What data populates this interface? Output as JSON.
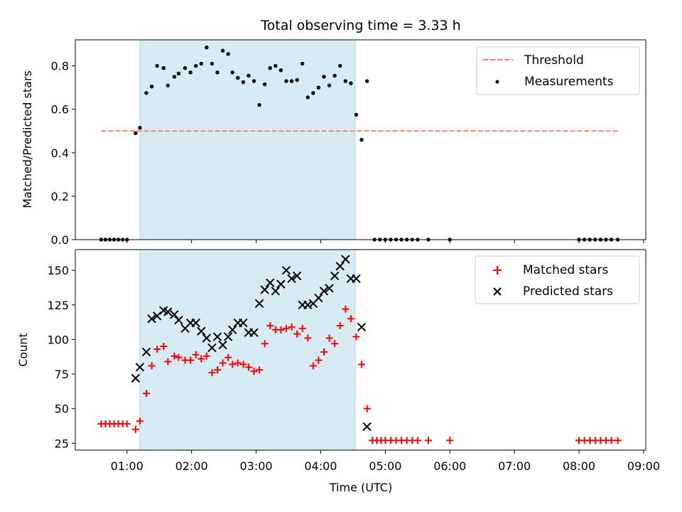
{
  "chart_data": [
    {
      "type": "scatter",
      "title": "Total observing time = 3.33 h",
      "xlabel": "",
      "ylabel": "Matched/Predicted stars",
      "xlim": [
        "00:12",
        "09:02"
      ],
      "ylim": [
        0,
        0.92
      ],
      "yticks": [
        "0.0",
        "0.2",
        "0.4",
        "0.6",
        "0.8"
      ],
      "shaded_interval": [
        "01:12",
        "04:32"
      ],
      "legend": {
        "placement": "top-right",
        "entries": [
          "Threshold",
          "Measurements"
        ]
      },
      "threshold": {
        "name": "Threshold",
        "y": 0.5,
        "x_range": [
          "00:36",
          "08:36"
        ],
        "color": "#ff7f7f",
        "style": "dashed"
      },
      "series": [
        {
          "name": "Measurements",
          "color": "#000000",
          "points": [
            [
              "00:36",
              0
            ],
            [
              "00:40",
              0
            ],
            [
              "00:44",
              0
            ],
            [
              "00:48",
              0
            ],
            [
              "00:52",
              0
            ],
            [
              "00:56",
              0
            ],
            [
              "01:00",
              0
            ],
            [
              "01:08",
              0.49
            ],
            [
              "01:12",
              0.515
            ],
            [
              "01:18",
              0.675
            ],
            [
              "01:23",
              0.705
            ],
            [
              "01:28",
              0.8
            ],
            [
              "01:34",
              0.79
            ],
            [
              "01:38",
              0.71
            ],
            [
              "01:44",
              0.75
            ],
            [
              "01:48",
              0.765
            ],
            [
              "01:54",
              0.79
            ],
            [
              "01:59",
              0.77
            ],
            [
              "02:04",
              0.8
            ],
            [
              "02:09",
              0.81
            ],
            [
              "02:14",
              0.885
            ],
            [
              "02:19",
              0.81
            ],
            [
              "02:24",
              0.77
            ],
            [
              "02:29",
              0.87
            ],
            [
              "02:34",
              0.855
            ],
            [
              "02:38",
              0.77
            ],
            [
              "02:43",
              0.745
            ],
            [
              "02:48",
              0.725
            ],
            [
              "02:53",
              0.755
            ],
            [
              "02:58",
              0.73
            ],
            [
              "03:03",
              0.62
            ],
            [
              "03:08",
              0.715
            ],
            [
              "03:13",
              0.79
            ],
            [
              "03:18",
              0.8
            ],
            [
              "03:23",
              0.78
            ],
            [
              "03:28",
              0.73
            ],
            [
              "03:33",
              0.73
            ],
            [
              "03:38",
              0.735
            ],
            [
              "03:43",
              0.81
            ],
            [
              "03:48",
              0.655
            ],
            [
              "03:53",
              0.675
            ],
            [
              "03:58",
              0.7
            ],
            [
              "04:03",
              0.75
            ],
            [
              "04:08",
              0.71
            ],
            [
              "04:13",
              0.755
            ],
            [
              "04:18",
              0.8
            ],
            [
              "04:23",
              0.73
            ],
            [
              "04:28",
              0.72
            ],
            [
              "04:33",
              0.575
            ],
            [
              "04:38",
              0.46
            ],
            [
              "04:43",
              0.73
            ],
            [
              "04:50",
              0
            ],
            [
              "04:55",
              0
            ],
            [
              "05:00",
              0
            ],
            [
              "05:05",
              0
            ],
            [
              "05:10",
              0
            ],
            [
              "05:15",
              0
            ],
            [
              "05:20",
              0
            ],
            [
              "05:25",
              0
            ],
            [
              "05:30",
              0
            ],
            [
              "05:40",
              0
            ],
            [
              "06:00",
              0
            ],
            [
              "08:00",
              0
            ],
            [
              "08:05",
              0
            ],
            [
              "08:10",
              0
            ],
            [
              "08:15",
              0
            ],
            [
              "08:20",
              0
            ],
            [
              "08:25",
              0
            ],
            [
              "08:30",
              0
            ],
            [
              "08:36",
              0
            ]
          ]
        }
      ]
    },
    {
      "type": "scatter",
      "title": "",
      "xlabel": "Time (UTC)",
      "ylabel": "Count",
      "xlim": [
        "00:12",
        "09:02"
      ],
      "ylim": [
        20,
        165
      ],
      "xticks": [
        "01:00",
        "02:00",
        "03:00",
        "04:00",
        "05:00",
        "06:00",
        "07:00",
        "08:00",
        "09:00"
      ],
      "yticks": [
        "25",
        "50",
        "75",
        "100",
        "125",
        "150"
      ],
      "shaded_interval": [
        "01:12",
        "04:32"
      ],
      "legend": {
        "placement": "top-right",
        "entries": [
          "Matched stars",
          "Predicted stars"
        ]
      },
      "series": [
        {
          "name": "Matched stars",
          "color": "#ff0000",
          "marker": "plus",
          "points": [
            [
              "00:36",
              39
            ],
            [
              "00:40",
              39
            ],
            [
              "00:44",
              39
            ],
            [
              "00:48",
              39
            ],
            [
              "00:52",
              39
            ],
            [
              "00:56",
              39
            ],
            [
              "01:00",
              39
            ],
            [
              "01:08",
              35
            ],
            [
              "01:12",
              41
            ],
            [
              "01:18",
              61
            ],
            [
              "01:23",
              81
            ],
            [
              "01:28",
              93
            ],
            [
              "01:34",
              95
            ],
            [
              "01:38",
              84
            ],
            [
              "01:44",
              88
            ],
            [
              "01:48",
              87
            ],
            [
              "01:54",
              85
            ],
            [
              "01:59",
              85
            ],
            [
              "02:04",
              89
            ],
            [
              "02:09",
              86
            ],
            [
              "02:14",
              88
            ],
            [
              "02:19",
              76
            ],
            [
              "02:24",
              78
            ],
            [
              "02:29",
              83
            ],
            [
              "02:34",
              87
            ],
            [
              "02:38",
              82
            ],
            [
              "02:43",
              83
            ],
            [
              "02:48",
              82
            ],
            [
              "02:53",
              80
            ],
            [
              "02:58",
              77
            ],
            [
              "03:03",
              78
            ],
            [
              "03:08",
              97
            ],
            [
              "03:13",
              110
            ],
            [
              "03:18",
              107
            ],
            [
              "03:23",
              107
            ],
            [
              "03:28",
              108
            ],
            [
              "03:33",
              109
            ],
            [
              "03:38",
              104
            ],
            [
              "03:43",
              108
            ],
            [
              "03:48",
              101
            ],
            [
              "03:53",
              81
            ],
            [
              "03:58",
              85
            ],
            [
              "04:03",
              91
            ],
            [
              "04:08",
              101
            ],
            [
              "04:13",
              97
            ],
            [
              "04:18",
              110
            ],
            [
              "04:23",
              122
            ],
            [
              "04:28",
              115
            ],
            [
              "04:33",
              102
            ],
            [
              "04:38",
              82
            ],
            [
              "04:43",
              50
            ],
            [
              "04:48",
              27
            ],
            [
              "04:52",
              27
            ],
            [
              "04:56",
              27
            ],
            [
              "05:00",
              27
            ],
            [
              "05:05",
              27
            ],
            [
              "05:10",
              27
            ],
            [
              "05:15",
              27
            ],
            [
              "05:20",
              27
            ],
            [
              "05:25",
              27
            ],
            [
              "05:30",
              27
            ],
            [
              "05:40",
              27
            ],
            [
              "06:00",
              27
            ],
            [
              "08:00",
              27
            ],
            [
              "08:05",
              27
            ],
            [
              "08:10",
              27
            ],
            [
              "08:15",
              27
            ],
            [
              "08:20",
              27
            ],
            [
              "08:25",
              27
            ],
            [
              "08:30",
              27
            ],
            [
              "08:36",
              27
            ]
          ]
        },
        {
          "name": "Predicted stars",
          "color": "#000000",
          "marker": "x",
          "points": [
            [
              "01:08",
              72
            ],
            [
              "01:12",
              80
            ],
            [
              "01:18",
              91
            ],
            [
              "01:23",
              115
            ],
            [
              "01:28",
              117
            ],
            [
              "01:34",
              121
            ],
            [
              "01:38",
              120
            ],
            [
              "01:44",
              118
            ],
            [
              "01:48",
              114
            ],
            [
              "01:54",
              108
            ],
            [
              "01:59",
              112
            ],
            [
              "02:04",
              112
            ],
            [
              "02:09",
              106
            ],
            [
              "02:14",
              101
            ],
            [
              "02:19",
              94
            ],
            [
              "02:24",
              102
            ],
            [
              "02:29",
              96
            ],
            [
              "02:34",
              102
            ],
            [
              "02:38",
              107
            ],
            [
              "02:43",
              112
            ],
            [
              "02:48",
              112
            ],
            [
              "02:53",
              105
            ],
            [
              "02:58",
              105
            ],
            [
              "03:03",
              126
            ],
            [
              "03:08",
              136
            ],
            [
              "03:13",
              141
            ],
            [
              "03:18",
              135
            ],
            [
              "03:23",
              140
            ],
            [
              "03:28",
              150
            ],
            [
              "03:33",
              144
            ],
            [
              "03:38",
              146
            ],
            [
              "03:43",
              125
            ],
            [
              "03:48",
              125
            ],
            [
              "03:53",
              126
            ],
            [
              "03:58",
              130
            ],
            [
              "04:03",
              135
            ],
            [
              "04:08",
              137
            ],
            [
              "04:13",
              146
            ],
            [
              "04:18",
              153
            ],
            [
              "04:23",
              158
            ],
            [
              "04:28",
              144
            ],
            [
              "04:33",
              144
            ],
            [
              "04:38",
              109
            ],
            [
              "04:43",
              37
            ]
          ]
        }
      ]
    }
  ]
}
